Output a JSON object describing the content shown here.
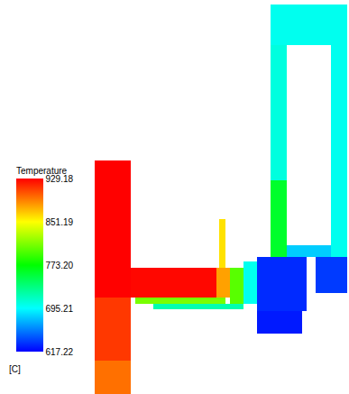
{
  "chart_data": {
    "type": "heatmap",
    "colorbar": {
      "title": "Temperature",
      "unit": "[C]",
      "range": [
        617.22,
        929.18
      ],
      "ticks": [
        617.22,
        695.21,
        {
          "value": 773.2,
          "label": "773.20"
        },
        851.19,
        929.18
      ]
    },
    "cells": [
      {
        "x": [
          105,
          145
        ],
        "y": [
          178,
          330
        ],
        "value": 929
      },
      {
        "x": [
          105,
          145
        ],
        "y": [
          330,
          400
        ],
        "value": 912
      },
      {
        "x": [
          105,
          145
        ],
        "y": [
          400,
          437
        ],
        "value": 895
      },
      {
        "x": [
          145,
          240
        ],
        "y": [
          297,
          330
        ],
        "value": 927
      },
      {
        "x": [
          150,
          250
        ],
        "y": [
          330,
          337
        ],
        "value": 810
      },
      {
        "x": [
          170,
          270
        ],
        "y": [
          337,
          343
        ],
        "value": 720
      },
      {
        "x": [
          240,
          255
        ],
        "y": [
          297,
          330
        ],
        "value": 880
      },
      {
        "x": [
          255,
          270
        ],
        "y": [
          297,
          337
        ],
        "value": 800
      },
      {
        "x": [
          270,
          285
        ],
        "y": [
          290,
          337
        ],
        "value": 700
      },
      {
        "x": [
          243,
          250
        ],
        "y": [
          243,
          297
        ],
        "value": 860
      },
      {
        "x": [
          285,
          340
        ],
        "y": [
          285,
          345
        ],
        "value": 630
      },
      {
        "x": [
          285,
          335
        ],
        "y": [
          345,
          370
        ],
        "value": 625
      },
      {
        "x": [
          350,
          385
        ],
        "y": [
          285,
          325
        ],
        "value": 635
      },
      {
        "x": [
          300,
          318
        ],
        "y": [
          50,
          200
        ],
        "value": 705
      },
      {
        "x": [
          300,
          318
        ],
        "y": [
          200,
          285
        ],
        "value": 760
      },
      {
        "x": [
          367,
          385
        ],
        "y": [
          50,
          285
        ],
        "value": 700
      },
      {
        "x": [
          300,
          385
        ],
        "y": [
          5,
          50
        ],
        "value": 700
      },
      {
        "x": [
          318,
          367
        ],
        "y": [
          272,
          285
        ],
        "value": 680
      }
    ]
  }
}
